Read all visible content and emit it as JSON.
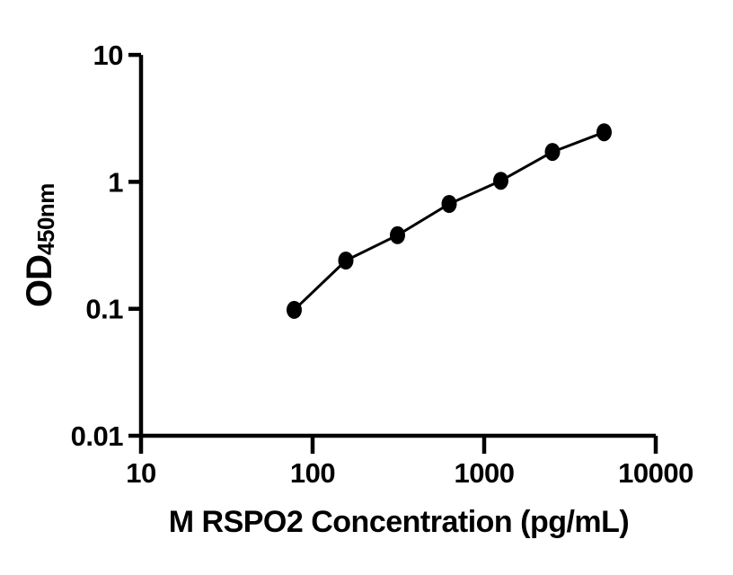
{
  "figure": {
    "background_color": "#ffffff",
    "axis_color": "#000000"
  },
  "chart_data": {
    "type": "scatter",
    "title": "",
    "xlabel": "M RSPO2 Concentration (pg/mL)",
    "ylabel_main": "OD",
    "ylabel_sub": "450nm",
    "xscale": "log",
    "yscale": "log",
    "xlim": [
      10,
      10000
    ],
    "ylim": [
      0.01,
      10
    ],
    "grid": false,
    "legend": false,
    "line_color": "#000000",
    "marker_color": "#000000",
    "marker_shape": "filled-circle",
    "x_ticks": [
      {
        "value": 10,
        "label": "10"
      },
      {
        "value": 100,
        "label": "100"
      },
      {
        "value": 1000,
        "label": "1000"
      },
      {
        "value": 10000,
        "label": "10000"
      }
    ],
    "y_ticks": [
      {
        "value": 10,
        "label": "10"
      },
      {
        "value": 1,
        "label": "1"
      },
      {
        "value": 0.1,
        "label": "0.1"
      },
      {
        "value": 0.01,
        "label": "0.01"
      }
    ],
    "x": [
      78.1,
      156.2,
      312.5,
      625,
      1250,
      2500,
      5000
    ],
    "y": [
      0.098,
      0.24,
      0.38,
      0.67,
      1.02,
      1.72,
      2.46
    ]
  }
}
